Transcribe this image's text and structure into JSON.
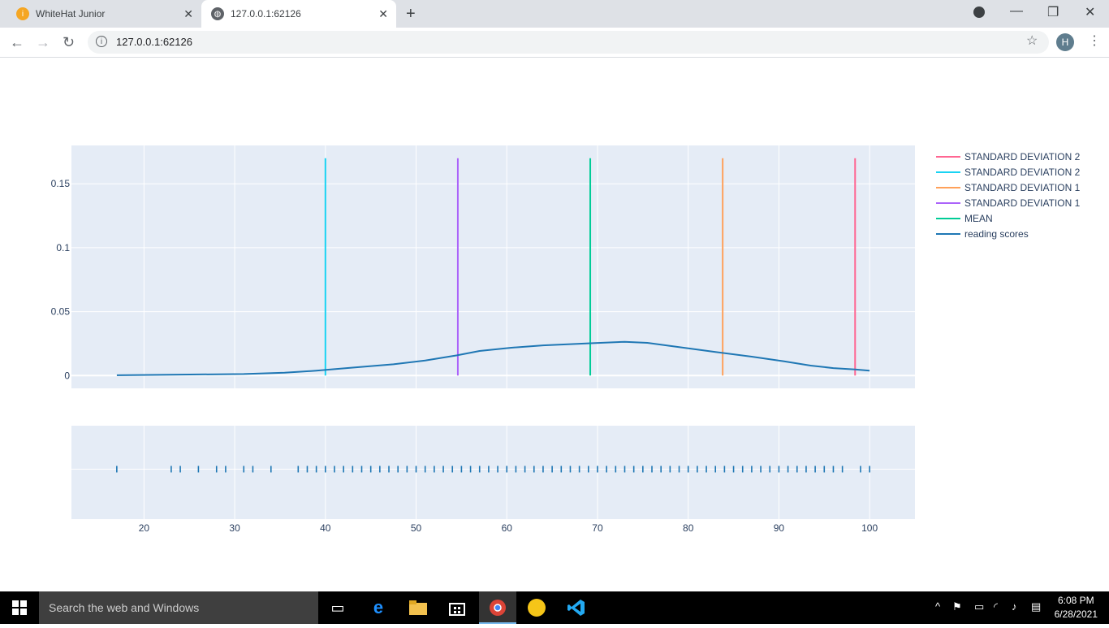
{
  "browser": {
    "tabs": [
      {
        "title": "WhiteHat Junior",
        "active": false
      },
      {
        "title": "127.0.0.1:62126",
        "active": true
      }
    ],
    "url": "127.0.0.1:62126",
    "profile_initial": "H"
  },
  "taskbar": {
    "search_placeholder": "Search the web and Windows",
    "time": "6:08 PM",
    "date": "6/28/2021"
  },
  "chart_data": {
    "type": "line",
    "title": "",
    "xlabel": "",
    "ylabel": "",
    "xlim": [
      12,
      105
    ],
    "ylim": [
      -0.01,
      0.18
    ],
    "xticks": [
      20,
      30,
      40,
      50,
      60,
      70,
      80,
      90,
      100
    ],
    "yticks": [
      0,
      0.05,
      0.1,
      0.15
    ],
    "ytick_labels": [
      "0",
      "0.05",
      "0.1",
      "0.15"
    ],
    "grid": true,
    "legend_position": "right",
    "series": [
      {
        "name": "STANDARD DEVIATION 2",
        "color": "#ff6692",
        "type": "vline",
        "x": 98.4,
        "y": [
          0,
          0.17
        ]
      },
      {
        "name": "STANDARD DEVIATION 2",
        "color": "#19d3f3",
        "type": "vline",
        "x": 40.0,
        "y": [
          0,
          0.17
        ]
      },
      {
        "name": "STANDARD DEVIATION 1",
        "color": "#ffa15a",
        "type": "vline",
        "x": 83.8,
        "y": [
          0,
          0.17
        ]
      },
      {
        "name": "STANDARD DEVIATION 1",
        "color": "#ab63fa",
        "type": "vline",
        "x": 54.6,
        "y": [
          0,
          0.17
        ]
      },
      {
        "name": "MEAN",
        "color": "#00cc96",
        "type": "vline",
        "x": 69.2,
        "y": [
          0,
          0.17
        ]
      },
      {
        "name": "reading scores",
        "color": "#1f77b4",
        "type": "line",
        "x": [
          17,
          25,
          31,
          35.5,
          39,
          43,
          47.5,
          51,
          54.5,
          57,
          60.5,
          64,
          69,
          73,
          75.5,
          79,
          83,
          87,
          90.5,
          93.5,
          96,
          98.4,
          100
        ],
        "y": [
          0.0002,
          0.0008,
          0.0012,
          0.0022,
          0.0038,
          0.0062,
          0.0088,
          0.0118,
          0.0158,
          0.0192,
          0.0218,
          0.0236,
          0.0252,
          0.0264,
          0.0256,
          0.0222,
          0.0184,
          0.0148,
          0.0112,
          0.0078,
          0.0058,
          0.0048,
          0.0038
        ]
      }
    ],
    "rug": {
      "color": "#1f77b4",
      "values": [
        17,
        23,
        24,
        26,
        28,
        29,
        31,
        32,
        34,
        37,
        38,
        39,
        40,
        41,
        42,
        43,
        44,
        45,
        46,
        47,
        48,
        49,
        50,
        51,
        52,
        53,
        54,
        55,
        56,
        57,
        58,
        59,
        60,
        61,
        62,
        63,
        64,
        65,
        66,
        67,
        68,
        69,
        70,
        71,
        72,
        73,
        74,
        75,
        76,
        77,
        78,
        79,
        80,
        81,
        82,
        83,
        84,
        85,
        86,
        87,
        88,
        89,
        90,
        91,
        92,
        93,
        94,
        95,
        96,
        97,
        99,
        100
      ]
    }
  }
}
